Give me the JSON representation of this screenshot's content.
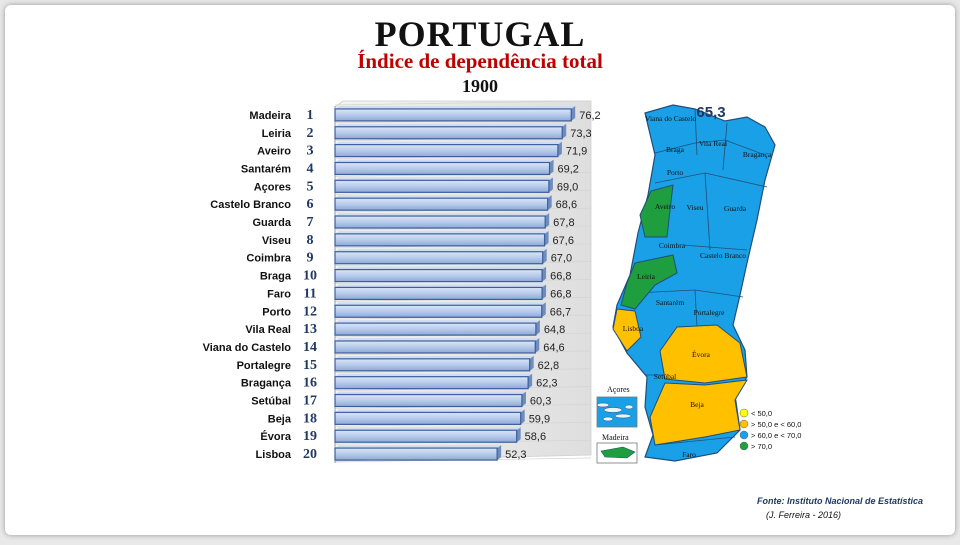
{
  "header": {
    "title": "PORTUGAL",
    "subtitle": "Índice de dependência total",
    "year": "1900"
  },
  "chart_data": {
    "type": "bar",
    "orientation": "horizontal",
    "title": "Índice de dependência total",
    "categories": [
      "Madeira",
      "Leiria",
      "Aveiro",
      "Santarém",
      "Açores",
      "Castelo Branco",
      "Guarda",
      "Viseu",
      "Coimbra",
      "Braga",
      "Faro",
      "Porto",
      "Vila Real",
      "Viana do Castelo",
      "Portalegre",
      "Bragança",
      "Setúbal",
      "Beja",
      "Évora",
      "Lisboa"
    ],
    "ranks": [
      "1",
      "2",
      "3",
      "4",
      "5",
      "6",
      "7",
      "8",
      "9",
      "10",
      "11",
      "12",
      "13",
      "14",
      "15",
      "16",
      "17",
      "18",
      "19",
      "20"
    ],
    "values": [
      76.2,
      73.3,
      71.9,
      69.2,
      69.0,
      68.6,
      67.8,
      67.6,
      67.0,
      66.8,
      66.8,
      66.7,
      64.8,
      64.6,
      62.8,
      62.3,
      60.3,
      59.9,
      58.6,
      52.3
    ],
    "value_labels": [
      "76,2",
      "73,3",
      "71,9",
      "69,2",
      "69,0",
      "68,6",
      "67,8",
      "67,6",
      "67,0",
      "66,8",
      "66,8",
      "66,7",
      "64,8",
      "64,6",
      "62,8",
      "62,3",
      "60,3",
      "59,9",
      "58,6",
      "52,3"
    ],
    "xlim": [
      0,
      80
    ]
  },
  "map": {
    "national_value": "65,3",
    "labels": [
      "Viana do Castelo",
      "Braga",
      "Vila Real",
      "Bragança",
      "Porto",
      "Aveiro",
      "Viseu",
      "Guarda",
      "Coimbra",
      "Castelo Branco",
      "Leiria",
      "Santarém",
      "Portalegre",
      "Lisboa",
      "Évora",
      "Setúbal",
      "Beja",
      "Faro"
    ],
    "inset_azores": "Açores",
    "inset_madeira": "Madeira",
    "legend": [
      {
        "label": "< 50,0",
        "color": "#ffff00"
      },
      {
        "label": "> 50,0  e < 60,0",
        "color": "#ffc000"
      },
      {
        "label": "> 60,0  e < 70,0",
        "color": "#1aa0e6"
      },
      {
        "label": "> 70,0",
        "color": "#1e9e3e"
      }
    ],
    "colors": {
      "blue": "#1aa0e6",
      "green": "#1e9e3e",
      "orange": "#ffc000",
      "border": "#1f4e79"
    }
  },
  "footer": {
    "source": "Fonte: Instituto Nacional de Estatística",
    "author": "(J. Ferreira - 2016)"
  }
}
